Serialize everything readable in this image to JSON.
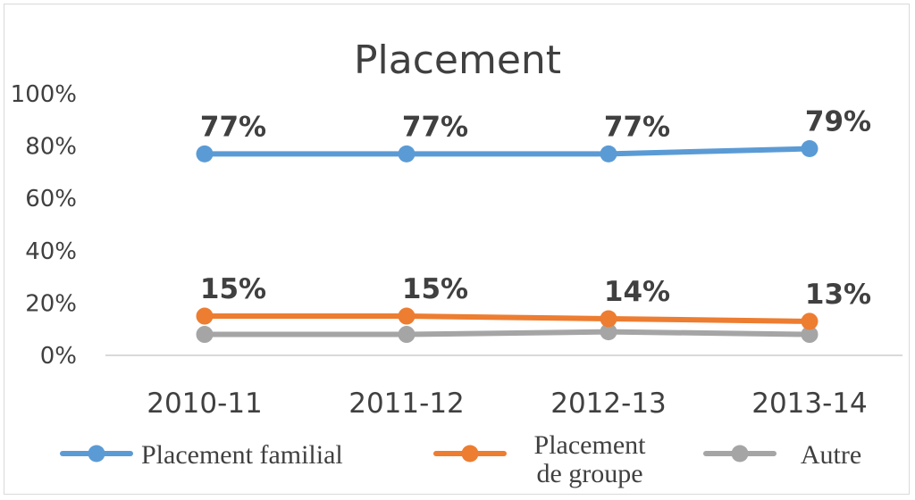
{
  "chart_data": {
    "type": "line",
    "title": "Placement",
    "categories": [
      "2010-11",
      "2011-12",
      "2012-13",
      "2013-14"
    ],
    "yticks": [
      "0%",
      "20%",
      "40%",
      "60%",
      "80%",
      "100%"
    ],
    "ylim": [
      0,
      100
    ],
    "y_unit": "%",
    "grid": false,
    "legend_position": "bottom",
    "series": [
      {
        "name": "Placement familial",
        "legend_lines": [
          "Placement familial"
        ],
        "values": [
          77,
          77,
          77,
          79
        ],
        "labels": [
          "77%",
          "77%",
          "77%",
          "79%"
        ],
        "color": "#5b9bd5"
      },
      {
        "name": "Placement de groupe",
        "legend_lines": [
          "Placement",
          "de groupe"
        ],
        "values": [
          15,
          15,
          14,
          13
        ],
        "labels": [
          "15%",
          "15%",
          "14%",
          "13%"
        ],
        "color": "#ed7d31"
      },
      {
        "name": "Autre",
        "legend_lines": [
          "Autre"
        ],
        "values": [
          8,
          8,
          9,
          8
        ],
        "labels": [],
        "color": "#a5a5a5"
      }
    ]
  }
}
